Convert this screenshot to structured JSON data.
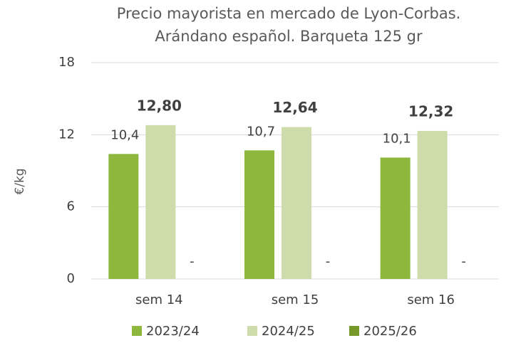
{
  "chart_data": {
    "type": "bar",
    "title": [
      "Precio mayorista en mercado de Lyon-Corbas.",
      "Arándano español. Barqueta 125 gr"
    ],
    "y_label": "€/kg",
    "categories": [
      "sem 14",
      "sem 15",
      "sem 16"
    ],
    "series": [
      {
        "name": "2023/24",
        "color": "#8db83d",
        "values": [
          10.4,
          10.7,
          10.1
        ],
        "value_labels": [
          "10,4",
          "10,7",
          "10,1"
        ]
      },
      {
        "name": "2024/25",
        "color": "#cddcaa",
        "values": [
          12.8,
          12.64,
          12.32
        ],
        "value_labels": [
          "12,80",
          "12,64",
          "12,32"
        ]
      },
      {
        "name": "2025/26",
        "color": "#76982a",
        "values": [
          null,
          null,
          null
        ],
        "value_labels": [
          "-",
          "-",
          "-"
        ]
      }
    ],
    "ylim": [
      0,
      18
    ],
    "yticks": [
      0,
      6,
      12,
      18
    ],
    "grid": true,
    "legend": "bottom"
  }
}
